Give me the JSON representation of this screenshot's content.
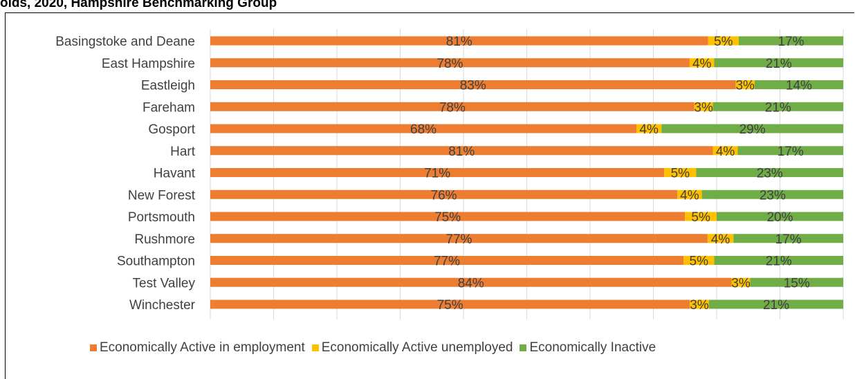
{
  "title": "olds, 2020, Hampshire Benchmarking Group",
  "chart_data": {
    "type": "bar",
    "orientation": "horizontal",
    "stacked": true,
    "percent_stacked": true,
    "categories": [
      "Basingstoke and Deane",
      "East Hampshire",
      "Eastleigh",
      "Fareham",
      "Gosport ",
      "Hart",
      "Havant",
      "New Forest",
      "Portsmouth",
      "Rushmore",
      "Southampton",
      "Test Valley",
      "Winchester"
    ],
    "series": [
      {
        "name": "Economically Active in employment",
        "color": "#ED7D31",
        "values": [
          81,
          78,
          83,
          78,
          68,
          81,
          71,
          76,
          75,
          77,
          77,
          84,
          75
        ],
        "labels": [
          "81%",
          "78%",
          "83%",
          "78%",
          "68%",
          "81%",
          "71%",
          "76%",
          "75%",
          "77%",
          "77%",
          "84%",
          "75%"
        ]
      },
      {
        "name": "Economically Active unemployed",
        "color": "#FFC000",
        "values": [
          5,
          4,
          3,
          3,
          4,
          4,
          5,
          4,
          5,
          4,
          5,
          3,
          3
        ],
        "labels": [
          "5%",
          "4%",
          "3%",
          "3%",
          "4%",
          "4%",
          "5%",
          "4%",
          "5%",
          "4%",
          "5%",
          "3%",
          "3%"
        ]
      },
      {
        "name": "Economically Inactive",
        "color": "#70AD47",
        "values": [
          17,
          21,
          14,
          21,
          29,
          17,
          23,
          23,
          20,
          17,
          21,
          15,
          21
        ],
        "labels": [
          "17%",
          "21%",
          "14%",
          "21%",
          "29%",
          "17%",
          "23%",
          "23%",
          "20%",
          "17%",
          "21%",
          "15%",
          "21%"
        ]
      }
    ],
    "xlim": [
      0,
      100
    ],
    "grid": true,
    "legend_position": "bottom"
  }
}
